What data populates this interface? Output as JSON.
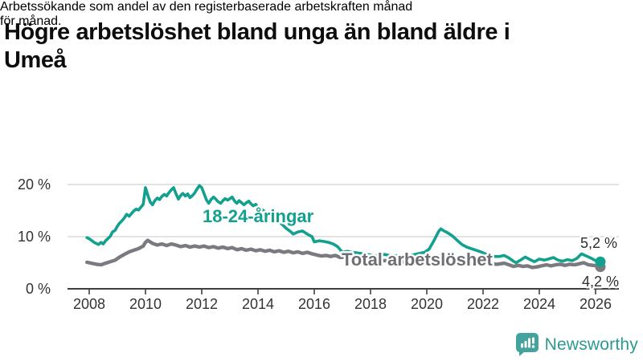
{
  "header": {
    "title_lines": [
      "Högre arbetslöshet bland unga än bland äldre i",
      "Umeå"
    ],
    "subtitle_lines": [
      "Arbetssökande som andel av den registerbaserade arbetskraften månad",
      "för månad."
    ]
  },
  "branding": {
    "name": "Newsworthy",
    "icon": "newsworthy-speech-bubble-bar-chart-icon"
  },
  "colors": {
    "youth_line": "#12a08f",
    "total_line": "#7a7a80",
    "total_label_text": "#6e6e74",
    "grid": "#d9d9d9",
    "axis": "#3f3f3f",
    "tick_text": "#333333",
    "end_label_text": "#2e2e2e",
    "brand_teal": "#2a9a91",
    "brand_icon_teal": "#45a39d"
  },
  "chart_data": {
    "type": "line",
    "title": "Högre arbetslöshet bland unga än bland äldre i Umeå",
    "subtitle": "Arbetssökande som andel av den registerbaserade arbetskraften månad för månad.",
    "xlabel": "",
    "ylabel": "",
    "grid": "horizontal",
    "legend_position": "inline-annotations",
    "xlim": [
      2007.8,
      2026.8
    ],
    "ylim": [
      0,
      21.5
    ],
    "x_ticks": [
      {
        "value": 2008,
        "label": "2008"
      },
      {
        "value": 2010,
        "label": "2010"
      },
      {
        "value": 2012,
        "label": "2012"
      },
      {
        "value": 2014,
        "label": "2014"
      },
      {
        "value": 2016,
        "label": "2016"
      },
      {
        "value": 2018,
        "label": "2018"
      },
      {
        "value": 2020,
        "label": "2020"
      },
      {
        "value": 2022,
        "label": "2022"
      },
      {
        "value": 2024,
        "label": "2024"
      },
      {
        "value": 2026,
        "label": "2026"
      }
    ],
    "y_ticks": [
      {
        "value": 0,
        "label": "0 %"
      },
      {
        "value": 10,
        "label": "10 %"
      },
      {
        "value": 20,
        "label": "20 %"
      }
    ],
    "series": [
      {
        "name": "18-24-åringar",
        "color": "#12a08f",
        "end_label": "5,2 %",
        "end_value": 5.2,
        "points": [
          [
            2007.92,
            9.8
          ],
          [
            2008.0,
            9.6
          ],
          [
            2008.17,
            8.9
          ],
          [
            2008.33,
            8.5
          ],
          [
            2008.42,
            8.9
          ],
          [
            2008.5,
            8.6
          ],
          [
            2008.58,
            9.2
          ],
          [
            2008.75,
            10.1
          ],
          [
            2008.83,
            10.9
          ],
          [
            2008.92,
            11.2
          ],
          [
            2009.0,
            12.0
          ],
          [
            2009.08,
            12.6
          ],
          [
            2009.17,
            13.1
          ],
          [
            2009.25,
            13.6
          ],
          [
            2009.33,
            14.3
          ],
          [
            2009.42,
            13.9
          ],
          [
            2009.58,
            14.9
          ],
          [
            2009.67,
            15.3
          ],
          [
            2009.75,
            15.1
          ],
          [
            2009.83,
            15.6
          ],
          [
            2009.92,
            16.2
          ],
          [
            2010.0,
            19.4
          ],
          [
            2010.08,
            18.0
          ],
          [
            2010.17,
            16.6
          ],
          [
            2010.25,
            16.1
          ],
          [
            2010.33,
            16.9
          ],
          [
            2010.42,
            17.4
          ],
          [
            2010.5,
            17.1
          ],
          [
            2010.58,
            17.7
          ],
          [
            2010.67,
            18.1
          ],
          [
            2010.75,
            17.8
          ],
          [
            2010.83,
            18.4
          ],
          [
            2010.92,
            19.0
          ],
          [
            2011.0,
            19.4
          ],
          [
            2011.08,
            18.3
          ],
          [
            2011.17,
            17.2
          ],
          [
            2011.25,
            17.9
          ],
          [
            2011.33,
            18.3
          ],
          [
            2011.42,
            17.8
          ],
          [
            2011.5,
            18.2
          ],
          [
            2011.58,
            17.5
          ],
          [
            2011.67,
            17.9
          ],
          [
            2011.75,
            18.4
          ],
          [
            2011.83,
            19.1
          ],
          [
            2011.92,
            19.8
          ],
          [
            2012.0,
            19.4
          ],
          [
            2012.08,
            18.3
          ],
          [
            2012.17,
            17.0
          ],
          [
            2012.25,
            16.4
          ],
          [
            2012.33,
            17.1
          ],
          [
            2012.42,
            17.6
          ],
          [
            2012.5,
            17.2
          ],
          [
            2012.58,
            16.7
          ],
          [
            2012.67,
            16.4
          ],
          [
            2012.75,
            16.9
          ],
          [
            2012.83,
            17.3
          ],
          [
            2012.92,
            17.0
          ],
          [
            2013.0,
            17.3
          ],
          [
            2013.08,
            17.6
          ],
          [
            2013.17,
            16.8
          ],
          [
            2013.25,
            16.4
          ],
          [
            2013.33,
            16.9
          ],
          [
            2013.42,
            16.5
          ],
          [
            2013.5,
            16.1
          ],
          [
            2013.58,
            16.5
          ],
          [
            2013.67,
            16.8
          ],
          [
            2013.75,
            16.3
          ],
          [
            2013.83,
            15.9
          ],
          [
            2013.92,
            16.2
          ],
          [
            2014.0,
            15.6
          ],
          [
            2014.17,
            15.1
          ],
          [
            2014.33,
            14.5
          ],
          [
            2014.5,
            13.9
          ],
          [
            2014.67,
            13.2
          ],
          [
            2014.83,
            12.5
          ],
          [
            2015.0,
            11.6
          ],
          [
            2015.17,
            10.9
          ],
          [
            2015.25,
            10.5
          ],
          [
            2015.42,
            10.9
          ],
          [
            2015.58,
            11.1
          ],
          [
            2015.75,
            10.5
          ],
          [
            2015.92,
            10.0
          ],
          [
            2016.0,
            9.0
          ],
          [
            2016.17,
            9.2
          ],
          [
            2016.33,
            9.1
          ],
          [
            2016.5,
            8.9
          ],
          [
            2016.67,
            8.6
          ],
          [
            2016.83,
            8.1
          ],
          [
            2017.0,
            7.0
          ],
          [
            2017.17,
            7.2
          ],
          [
            2017.33,
            7.0
          ],
          [
            2017.5,
            6.9
          ],
          [
            2017.75,
            6.7
          ],
          [
            2018.0,
            6.5
          ],
          [
            2018.25,
            6.3
          ],
          [
            2018.5,
            6.6
          ],
          [
            2018.75,
            6.3
          ],
          [
            2019.0,
            6.4
          ],
          [
            2019.25,
            6.2
          ],
          [
            2019.5,
            6.5
          ],
          [
            2019.75,
            6.8
          ],
          [
            2019.92,
            7.0
          ],
          [
            2020.08,
            7.6
          ],
          [
            2020.25,
            9.2
          ],
          [
            2020.42,
            11.0
          ],
          [
            2020.5,
            11.5
          ],
          [
            2020.58,
            11.2
          ],
          [
            2020.75,
            10.7
          ],
          [
            2020.92,
            10.1
          ],
          [
            2021.08,
            9.3
          ],
          [
            2021.25,
            8.5
          ],
          [
            2021.42,
            8.0
          ],
          [
            2021.58,
            7.7
          ],
          [
            2021.75,
            7.4
          ],
          [
            2021.92,
            7.1
          ],
          [
            2022.08,
            6.7
          ],
          [
            2022.25,
            6.4
          ],
          [
            2022.42,
            6.2
          ],
          [
            2022.58,
            6.2
          ],
          [
            2022.75,
            6.4
          ],
          [
            2022.92,
            5.9
          ],
          [
            2023.08,
            5.3
          ],
          [
            2023.17,
            5.0
          ],
          [
            2023.33,
            5.5
          ],
          [
            2023.5,
            6.1
          ],
          [
            2023.67,
            5.6
          ],
          [
            2023.83,
            5.2
          ],
          [
            2024.0,
            5.7
          ],
          [
            2024.17,
            5.5
          ],
          [
            2024.33,
            5.7
          ],
          [
            2024.5,
            6.0
          ],
          [
            2024.67,
            5.5
          ],
          [
            2024.83,
            5.3
          ],
          [
            2025.0,
            5.6
          ],
          [
            2025.17,
            5.4
          ],
          [
            2025.33,
            5.8
          ],
          [
            2025.5,
            6.7
          ],
          [
            2025.67,
            6.3
          ],
          [
            2025.83,
            5.9
          ],
          [
            2026.0,
            5.4
          ],
          [
            2026.17,
            5.2
          ]
        ]
      },
      {
        "name": "Total arbetslöshet",
        "color": "#7a7a80",
        "end_label": "4,2 %",
        "end_value": 4.2,
        "points": [
          [
            2007.92,
            5.1
          ],
          [
            2008.08,
            4.9
          ],
          [
            2008.25,
            4.7
          ],
          [
            2008.42,
            4.6
          ],
          [
            2008.58,
            4.9
          ],
          [
            2008.75,
            5.2
          ],
          [
            2008.92,
            5.5
          ],
          [
            2009.08,
            6.1
          ],
          [
            2009.25,
            6.6
          ],
          [
            2009.42,
            7.1
          ],
          [
            2009.58,
            7.4
          ],
          [
            2009.75,
            7.7
          ],
          [
            2009.92,
            8.2
          ],
          [
            2010.0,
            8.9
          ],
          [
            2010.08,
            9.3
          ],
          [
            2010.25,
            8.7
          ],
          [
            2010.42,
            8.4
          ],
          [
            2010.58,
            8.6
          ],
          [
            2010.75,
            8.3
          ],
          [
            2010.92,
            8.6
          ],
          [
            2011.08,
            8.4
          ],
          [
            2011.25,
            8.1
          ],
          [
            2011.42,
            8.3
          ],
          [
            2011.58,
            8.0
          ],
          [
            2011.75,
            8.2
          ],
          [
            2011.92,
            8.0
          ],
          [
            2012.08,
            8.2
          ],
          [
            2012.25,
            7.9
          ],
          [
            2012.42,
            8.1
          ],
          [
            2012.58,
            7.8
          ],
          [
            2012.75,
            8.0
          ],
          [
            2012.92,
            7.7
          ],
          [
            2013.08,
            7.9
          ],
          [
            2013.25,
            7.5
          ],
          [
            2013.42,
            7.7
          ],
          [
            2013.58,
            7.4
          ],
          [
            2013.75,
            7.6
          ],
          [
            2013.92,
            7.3
          ],
          [
            2014.08,
            7.5
          ],
          [
            2014.25,
            7.2
          ],
          [
            2014.42,
            7.4
          ],
          [
            2014.58,
            7.1
          ],
          [
            2014.75,
            7.3
          ],
          [
            2014.92,
            7.0
          ],
          [
            2015.08,
            7.2
          ],
          [
            2015.25,
            6.9
          ],
          [
            2015.42,
            7.1
          ],
          [
            2015.58,
            6.8
          ],
          [
            2015.75,
            7.0
          ],
          [
            2015.92,
            6.7
          ],
          [
            2016.08,
            6.5
          ],
          [
            2016.25,
            6.3
          ],
          [
            2016.42,
            6.4
          ],
          [
            2016.58,
            6.2
          ],
          [
            2016.75,
            6.4
          ],
          [
            2016.92,
            6.0
          ],
          [
            2017.08,
            6.1
          ],
          [
            2017.25,
            5.9
          ],
          [
            2017.5,
            5.8
          ],
          [
            2017.75,
            5.7
          ],
          [
            2018.0,
            5.6
          ],
          [
            2018.25,
            5.5
          ],
          [
            2018.5,
            5.4
          ],
          [
            2018.75,
            5.3
          ],
          [
            2019.0,
            5.2
          ],
          [
            2019.25,
            5.1
          ],
          [
            2019.5,
            5.2
          ],
          [
            2019.75,
            5.1
          ],
          [
            2020.0,
            5.3
          ],
          [
            2020.25,
            5.9
          ],
          [
            2020.5,
            6.3
          ],
          [
            2020.75,
            6.1
          ],
          [
            2021.0,
            5.8
          ],
          [
            2021.25,
            5.5
          ],
          [
            2021.5,
            5.2
          ],
          [
            2021.75,
            5.0
          ],
          [
            2022.0,
            4.9
          ],
          [
            2022.25,
            4.8
          ],
          [
            2022.5,
            4.7
          ],
          [
            2022.75,
            4.9
          ],
          [
            2022.92,
            4.6
          ],
          [
            2023.08,
            4.3
          ],
          [
            2023.25,
            4.5
          ],
          [
            2023.42,
            4.3
          ],
          [
            2023.58,
            4.4
          ],
          [
            2023.75,
            4.1
          ],
          [
            2023.92,
            4.2
          ],
          [
            2024.08,
            4.4
          ],
          [
            2024.25,
            4.6
          ],
          [
            2024.42,
            4.4
          ],
          [
            2024.58,
            4.6
          ],
          [
            2024.75,
            4.7
          ],
          [
            2024.92,
            4.5
          ],
          [
            2025.08,
            4.7
          ],
          [
            2025.25,
            4.6
          ],
          [
            2025.42,
            4.8
          ],
          [
            2025.58,
            5.0
          ],
          [
            2025.75,
            4.6
          ],
          [
            2025.92,
            4.5
          ],
          [
            2026.08,
            4.4
          ],
          [
            2026.17,
            4.2
          ]
        ]
      }
    ]
  }
}
